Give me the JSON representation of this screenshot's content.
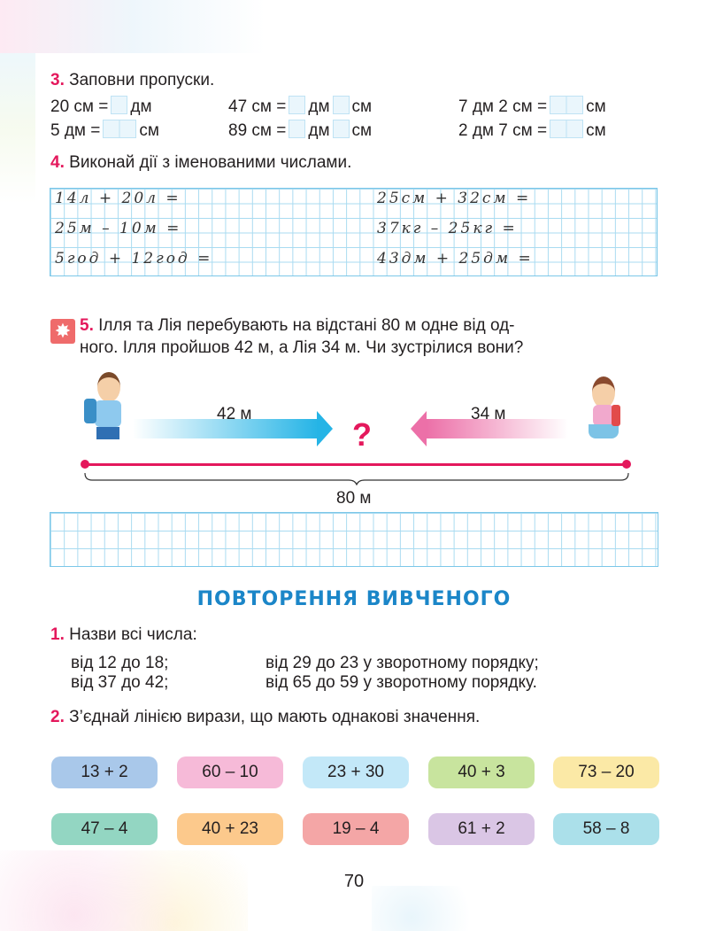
{
  "task3": {
    "num": "3.",
    "title": "Заповни пропуски.",
    "row1": [
      {
        "a": "20 см =",
        "b": "дм"
      },
      {
        "a": "47 см =",
        "b": "дм",
        "c": "см"
      },
      {
        "a": "7 дм 2 см =",
        "b": "см"
      }
    ],
    "row2": [
      {
        "a": "5 дм =",
        "b": "см"
      },
      {
        "a": "89 см =",
        "b": "дм",
        "c": "см"
      },
      {
        "a": "2 дм 7 см =",
        "b": "см"
      }
    ]
  },
  "task4": {
    "num": "4.",
    "title": "Виконай дії з іменованими числами.",
    "left": [
      "14л + 20л =",
      "25м – 10м  =",
      "5год + 12год ="
    ],
    "right": [
      "25см + 32см =",
      "37кг – 25кг =",
      "43дм + 25дм ="
    ]
  },
  "task5": {
    "num": "5.",
    "line1": "Ілля та Лія перебувають на відстані 80 м одне від од-",
    "line2": "ного. Ілля пройшов 42 м, а Лія 34 м. Чи зустрілися вони?",
    "left_dist": "42 м",
    "right_dist": "34 м",
    "question": "?",
    "total": "80 м"
  },
  "section_title": "ПОВТОРЕННЯ ВИВЧЕНОГО",
  "rep1": {
    "num": "1.",
    "title": "Назви всі числа:",
    "items": [
      "від 12 до 18;",
      "від 29 до 23 у зворотному порядку;",
      "від 37 до 42;",
      "від 65 до 59 у зворотному порядку."
    ]
  },
  "rep2": {
    "num": "2.",
    "title": "З’єднай лінією вирази, що мають однакові значення.",
    "top": [
      {
        "text": "13 + 2",
        "color": "#a9c8ea"
      },
      {
        "text": "60 – 10",
        "color": "#f6bad8"
      },
      {
        "text": "23 + 30",
        "color": "#c3e8f8"
      },
      {
        "text": "40 + 3",
        "color": "#c8e49e"
      },
      {
        "text": "73 – 20",
        "color": "#fbe9a6"
      }
    ],
    "bottom": [
      {
        "text": "47 – 4",
        "color": "#93d6c2"
      },
      {
        "text": "40 + 23",
        "color": "#fcc98c"
      },
      {
        "text": "19 – 4",
        "color": "#f4a6a6"
      },
      {
        "text": "61 + 2",
        "color": "#dac6e5"
      },
      {
        "text": "58 – 8",
        "color": "#abe0ea"
      }
    ]
  },
  "page_number": "70",
  "colors": {
    "accent": "#e4185c",
    "heading": "#1b86c8",
    "grid": "#a9dbf1"
  }
}
